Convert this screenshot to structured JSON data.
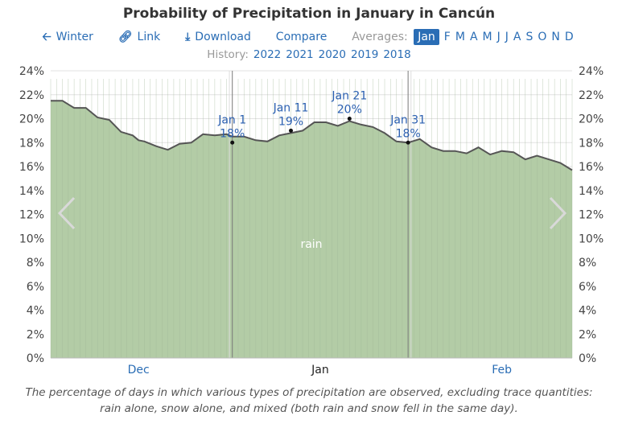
{
  "title": "Probability of Precipitation in January in Cancún",
  "nav": {
    "back_label": "Winter",
    "link_label": "Link",
    "download_label": "Download",
    "compare_label": "Compare",
    "averages_label": "Averages:",
    "months": [
      "Jan",
      "F",
      "M",
      "A",
      "M",
      "J",
      "J",
      "A",
      "S",
      "O",
      "N",
      "D"
    ],
    "selected_month": "Jan",
    "history_label": "History:",
    "years": [
      "2022",
      "2021",
      "2020",
      "2019",
      "2018"
    ]
  },
  "caption": "The percentage of days in which various types of precipitation are observed, excluding trace quantities: rain alone, snow alone, and mixed (both rain and snow fell in the same day).",
  "colors": {
    "area": "#b3cca6",
    "line": "#555555",
    "link": "#2a6db5",
    "annotation": "#2a5fb0"
  },
  "icons": {
    "back": "arrow-left-icon",
    "link": "link-icon",
    "download": "download-icon",
    "prev": "chevron-left-icon",
    "next": "chevron-right-icon"
  },
  "chart_data": {
    "type": "area",
    "ylim": [
      0,
      24
    ],
    "y_ticks": [
      "0%",
      "2%",
      "4%",
      "6%",
      "8%",
      "10%",
      "12%",
      "14%",
      "16%",
      "18%",
      "20%",
      "22%",
      "24%"
    ],
    "month_labels": [
      {
        "label": "Dec",
        "day": -16
      },
      {
        "label": "Jan",
        "day": 15
      },
      {
        "label": "Feb",
        "day": 46
      }
    ],
    "x_range": [
      -31,
      58
    ],
    "month_boundaries": [
      -0.5,
      30.5
    ],
    "series": [
      {
        "name": "rain",
        "x": [
          -31,
          -29,
          -28,
          -27,
          -25,
          -23,
          -21,
          -19,
          -17,
          -16,
          -15,
          -13,
          -11,
          -9,
          -7,
          -5,
          -3,
          -1,
          0,
          2,
          4,
          6,
          8,
          10,
          12,
          14,
          16,
          18,
          20,
          22,
          24,
          26,
          28,
          30,
          32,
          34,
          36,
          38,
          40,
          42,
          44,
          46,
          48,
          50,
          52,
          54,
          56,
          58
        ],
        "values": [
          21.5,
          21.5,
          21.2,
          20.9,
          20.9,
          20.1,
          19.9,
          18.9,
          18.6,
          18.2,
          18.1,
          17.7,
          17.4,
          17.9,
          18.0,
          18.7,
          18.6,
          18.7,
          18.5,
          18.5,
          18.2,
          18.1,
          18.6,
          18.8,
          19.0,
          19.7,
          19.7,
          19.4,
          19.8,
          19.5,
          19.3,
          18.8,
          18.1,
          18.0,
          18.3,
          17.6,
          17.3,
          17.3,
          17.1,
          17.6,
          17.0,
          17.3,
          17.2,
          16.6,
          16.9,
          16.6,
          16.3,
          15.7
        ]
      }
    ],
    "annotations": [
      {
        "day": 0,
        "label": "Jan 1",
        "value": 18,
        "value_label": "18%"
      },
      {
        "day": 10,
        "label": "Jan 11",
        "value": 19,
        "value_label": "19%"
      },
      {
        "day": 20,
        "label": "Jan 21",
        "value": 20,
        "value_label": "20%"
      },
      {
        "day": 30,
        "label": "Jan 31",
        "value": 18,
        "value_label": "18%"
      }
    ],
    "area_label": "rain"
  }
}
